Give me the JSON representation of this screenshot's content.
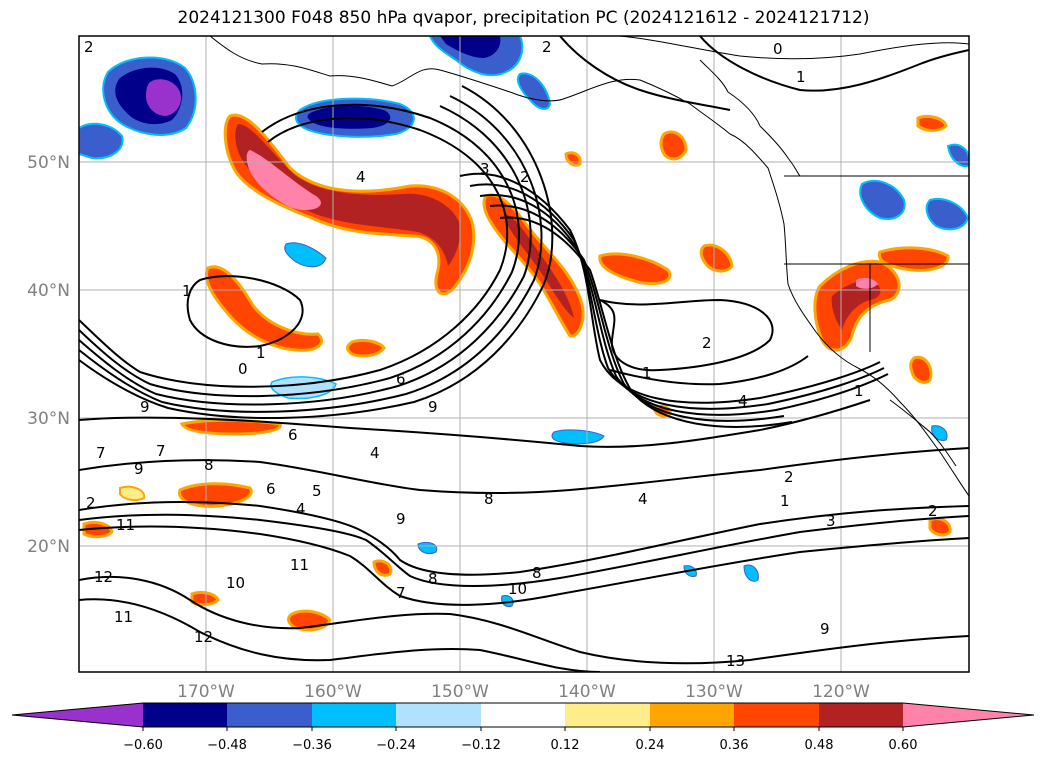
{
  "title": "2024121300 F048 850 hPa qvapor, precipitation PC (2024121612 - 2024121712)",
  "map": {
    "lat_labels": [
      "50°N",
      "40°N",
      "30°N",
      "20°N"
    ],
    "lon_labels": [
      "170°W",
      "160°W",
      "150°W",
      "140°W",
      "130°W",
      "120°W"
    ],
    "contour_labels": [
      "2",
      "2",
      "0",
      "1",
      "4",
      "3",
      "2",
      "1",
      "1",
      "0",
      "1",
      "9",
      "9",
      "6",
      "4",
      "7",
      "7",
      "9",
      "8",
      "5",
      "4",
      "6",
      "8",
      "9",
      "11",
      "12",
      "11",
      "10",
      "12",
      "8",
      "10",
      "7",
      "2",
      "1",
      "4",
      "4",
      "2",
      "1",
      "3",
      "2",
      "9",
      "13",
      "2",
      "6",
      "8",
      "11"
    ]
  },
  "colorbar": {
    "tick_labels": [
      "−0.60",
      "−0.48",
      "−0.36",
      "−0.24",
      "−0.12",
      "0.12",
      "0.24",
      "0.36",
      "0.48",
      "0.60"
    ],
    "bin_colors": [
      "#9932CC",
      "#00008B",
      "#3A5FCD",
      "#00BFFF",
      "#B0E2FF",
      "#FFFFFF",
      "#FFEC8B",
      "#FFA500",
      "#FF4500",
      "#B22222",
      "#FF82AB"
    ]
  },
  "colors": {
    "coast": "#000000",
    "grid": "#b0b0b0",
    "contour": "#000000"
  }
}
